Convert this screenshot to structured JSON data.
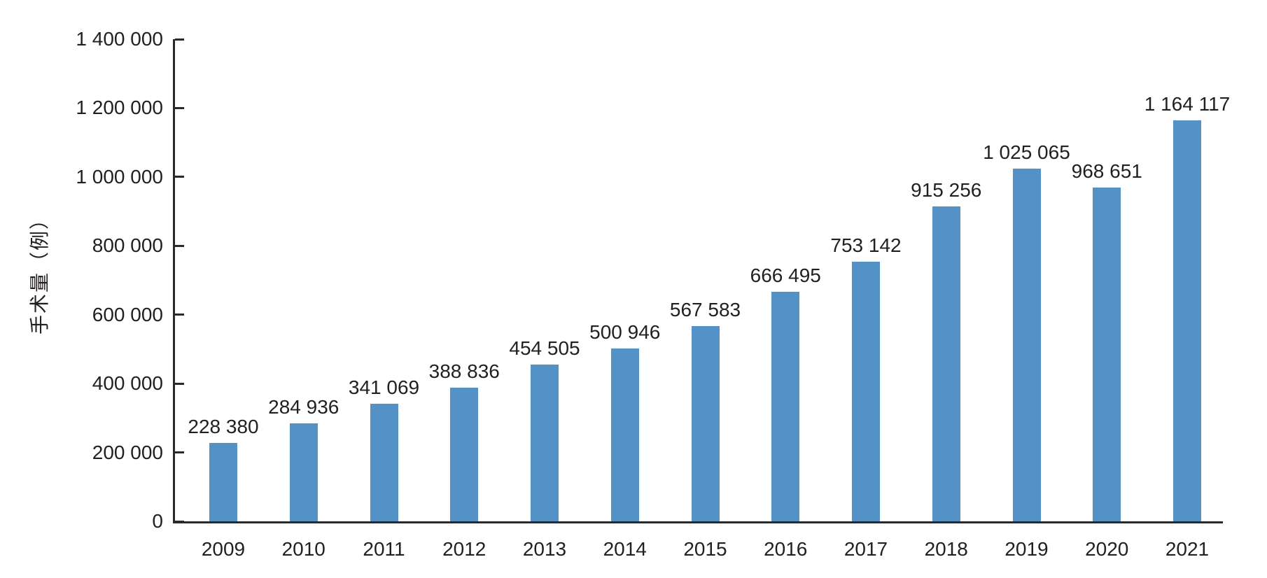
{
  "chart_data": {
    "type": "bar",
    "title": "",
    "xlabel": "",
    "ylabel": "手术量（例）",
    "categories": [
      "2009",
      "2010",
      "2011",
      "2012",
      "2013",
      "2014",
      "2015",
      "2016",
      "2017",
      "2018",
      "2019",
      "2020",
      "2021"
    ],
    "values": [
      228380,
      284936,
      341069,
      388836,
      454505,
      500946,
      567583,
      666495,
      753142,
      915256,
      1025065,
      968651,
      1164117
    ],
    "data_labels": [
      "228 380",
      "284 936",
      "341 069",
      "388 836",
      "454 505",
      "500 946",
      "567 583",
      "666 495",
      "753 142",
      "915 256",
      "1 025 065",
      "968 651",
      "1 164 117"
    ],
    "ylim": [
      0,
      1400000
    ],
    "ytick_step": 200000,
    "ytick_labels": [
      "0",
      "200 000",
      "400 000",
      "600 000",
      "800 000",
      "1 000 000",
      "1 200 000",
      "1 400 000"
    ],
    "grid": false,
    "legend": "none",
    "bar_color": "#5491C6",
    "axis_color": "#2b2a2a",
    "text_color": "#231f20",
    "thousands_separator": " "
  }
}
